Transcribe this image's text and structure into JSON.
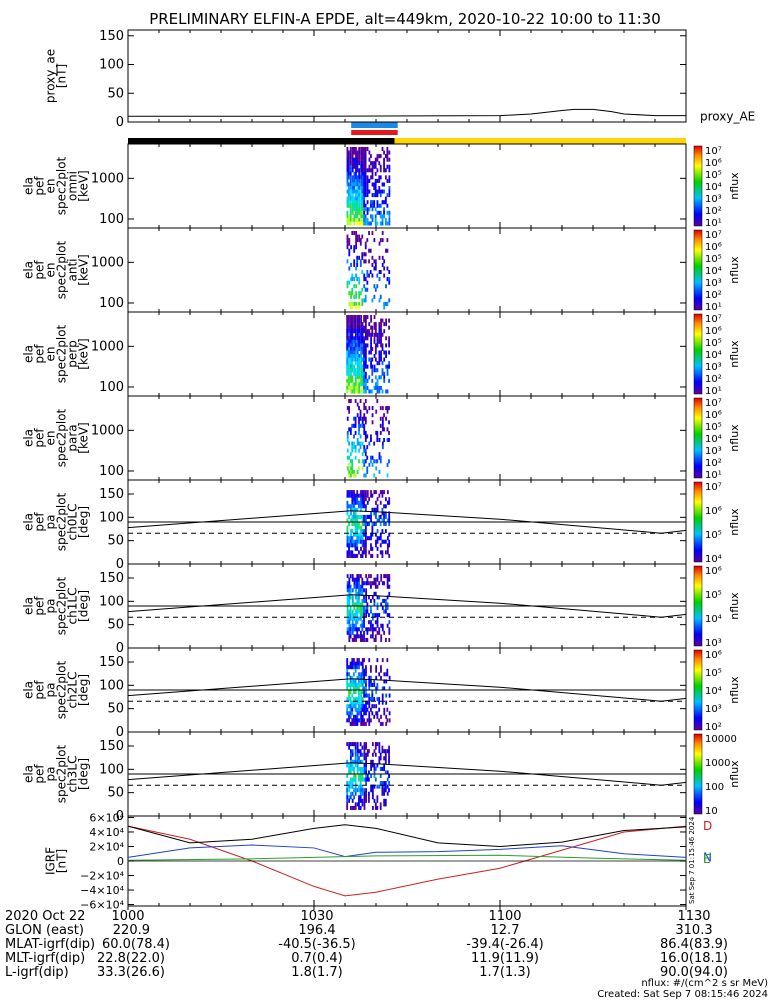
{
  "title": "PRELIMINARY ELFIN-A EPDE, alt=449km, 2020-10-22 10:00 to 11:30",
  "colors": {
    "bar_night": "#000000",
    "bar_day": "#ffd500",
    "bar_blue": "#1e88e5",
    "bar_red": "#e01b1b",
    "line_black": "#000000",
    "line_blue": "#1f3fd8",
    "line_green": "#2ca02c",
    "line_red": "#d02020"
  },
  "chart_data": [
    {
      "id": "proxy_ae",
      "type": "line",
      "ylabel": [
        "proxy_ae",
        "[nT]"
      ],
      "ylim": [
        0,
        160
      ],
      "yticks": [
        "150",
        "100",
        "50",
        "0"
      ],
      "ytick_values": [
        150,
        100,
        50,
        0
      ],
      "legend": "proxy_AE",
      "series": [
        {
          "name": "proxy_AE",
          "x": [
            0,
            30,
            60,
            65,
            70,
            72,
            75,
            78,
            80,
            85,
            90
          ],
          "y": [
            10,
            10,
            11,
            14,
            20,
            22,
            22,
            18,
            14,
            11,
            11
          ]
        }
      ]
    },
    {
      "id": "omni",
      "type": "heatmap",
      "ylabel": [
        "ela",
        "pef",
        "en",
        "spec2plot",
        "omni",
        "[keV]"
      ],
      "yticks": [
        "1000",
        "100"
      ],
      "ytick_values": [
        1000,
        100
      ],
      "yscale": "log",
      "ylim": [
        60,
        7000
      ],
      "colorbar": {
        "label": "nflux",
        "ticks": [
          "10⁷",
          "10⁶",
          "10⁵",
          "10⁴",
          "10³",
          "10²",
          "10¹"
        ]
      }
    },
    {
      "id": "anti",
      "type": "heatmap",
      "ylabel": [
        "ela",
        "pef",
        "en",
        "spec2plot",
        "anti",
        "[keV]"
      ],
      "yticks": [
        "1000",
        "100"
      ],
      "ytick_values": [
        1000,
        100
      ],
      "yscale": "log",
      "ylim": [
        60,
        7000
      ],
      "colorbar": {
        "label": "nflux",
        "ticks": [
          "10⁷",
          "10⁶",
          "10⁵",
          "10⁴",
          "10³",
          "10²",
          "10¹"
        ]
      }
    },
    {
      "id": "perp",
      "type": "heatmap",
      "ylabel": [
        "ela",
        "pef",
        "en",
        "spec2plot",
        "perp",
        "[keV]"
      ],
      "yticks": [
        "1000",
        "100"
      ],
      "ytick_values": [
        1000,
        100
      ],
      "yscale": "log",
      "ylim": [
        60,
        7000
      ],
      "colorbar": {
        "label": "nflux",
        "ticks": [
          "10⁷",
          "10⁶",
          "10⁵",
          "10⁴",
          "10³",
          "10²",
          "10¹"
        ]
      }
    },
    {
      "id": "para",
      "type": "heatmap",
      "ylabel": [
        "ela",
        "pef",
        "en",
        "spec2plot",
        "para",
        "[keV]"
      ],
      "yticks": [
        "1000",
        "100"
      ],
      "ytick_values": [
        1000,
        100
      ],
      "yscale": "log",
      "ylim": [
        60,
        7000
      ],
      "colorbar": {
        "label": "nflux",
        "ticks": [
          "10⁷",
          "10⁶",
          "10⁵",
          "10⁴",
          "10³",
          "10²",
          "10¹"
        ]
      }
    },
    {
      "id": "ch0LC",
      "type": "heatmap",
      "ylabel": [
        "ela",
        "pef",
        "pa",
        "spec2plot",
        "ch0LC",
        "[deg]"
      ],
      "yticks": [
        "150",
        "100",
        "50",
        "0"
      ],
      "ytick_values": [
        150,
        100,
        50,
        0
      ],
      "ylim": [
        0,
        180
      ],
      "colorbar": {
        "label": "nflux",
        "ticks": [
          "10⁷",
          "10⁶",
          "10⁵",
          "10⁴"
        ]
      }
    },
    {
      "id": "ch1LC",
      "type": "heatmap",
      "ylabel": [
        "ela",
        "pef",
        "pa",
        "spec2plot",
        "ch1LC",
        "[deg]"
      ],
      "yticks": [
        "150",
        "100",
        "50",
        "0"
      ],
      "ytick_values": [
        150,
        100,
        50,
        0
      ],
      "ylim": [
        0,
        180
      ],
      "colorbar": {
        "label": "nflux",
        "ticks": [
          "10⁶",
          "10⁵",
          "10⁴",
          "10³"
        ]
      }
    },
    {
      "id": "ch2LC",
      "type": "heatmap",
      "ylabel": [
        "ela",
        "pef",
        "pa",
        "spec2plot",
        "ch2LC",
        "[deg]"
      ],
      "yticks": [
        "150",
        "100",
        "50",
        "0"
      ],
      "ytick_values": [
        150,
        100,
        50,
        0
      ],
      "ylim": [
        0,
        180
      ],
      "colorbar": {
        "label": "nflux",
        "ticks": [
          "10⁶",
          "10⁵",
          "10⁴",
          "10³",
          "10²"
        ]
      }
    },
    {
      "id": "ch3LC",
      "type": "heatmap",
      "ylabel": [
        "ela",
        "pef",
        "pa",
        "spec2plot",
        "ch3LC",
        "[deg]"
      ],
      "yticks": [
        "150",
        "100",
        "50",
        "0"
      ],
      "ytick_values": [
        150,
        100,
        50,
        0
      ],
      "ylim": [
        0,
        180
      ],
      "colorbar": {
        "label": "nflux",
        "ticks": [
          "10000",
          "1000",
          "100",
          "10"
        ]
      }
    },
    {
      "id": "igrf",
      "type": "line",
      "ylabel": [
        "IGRF",
        "[nT]"
      ],
      "ylim": [
        -62000,
        62000
      ],
      "yticks": [
        "6×10⁴",
        "4×10⁴",
        "2×10⁴",
        "0",
        "−2×10⁴",
        "−4×10⁴",
        "−6×10⁴"
      ],
      "ytick_values": [
        60000,
        40000,
        20000,
        0,
        -20000,
        -40000,
        -60000
      ],
      "legend_letters": [
        "D",
        "N",
        "E"
      ],
      "side_note": "Sat Sep  7 01:15:46 2024",
      "series": [
        {
          "name": "D",
          "x": [
            0,
            10,
            20,
            30,
            35,
            40,
            50,
            60,
            70,
            80,
            90
          ],
          "y": [
            48000,
            30000,
            0,
            -35000,
            -48000,
            -43000,
            -25000,
            -10000,
            15000,
            40000,
            48000
          ]
        },
        {
          "name": "black",
          "x": [
            0,
            10,
            20,
            30,
            35,
            40,
            50,
            60,
            70,
            80,
            90
          ],
          "y": [
            48000,
            25000,
            30000,
            45000,
            50000,
            45000,
            25000,
            20000,
            26000,
            42000,
            47000
          ]
        },
        {
          "name": "N",
          "x": [
            0,
            10,
            20,
            30,
            35,
            40,
            50,
            60,
            70,
            80,
            90
          ],
          "y": [
            5000,
            18000,
            22000,
            18000,
            6000,
            12000,
            13000,
            16000,
            21000,
            10000,
            5000
          ]
        },
        {
          "name": "E",
          "x": [
            0,
            20,
            30,
            40,
            60,
            75,
            90
          ],
          "y": [
            1000,
            3000,
            5000,
            7000,
            8000,
            4000,
            1000
          ]
        }
      ]
    }
  ],
  "x_axis": {
    "tick_labels": [
      "1000",
      "1030",
      "1100",
      "1130"
    ],
    "tick_minutes": [
      0,
      30,
      60,
      90
    ]
  },
  "bars": {
    "night_end_minute": 43,
    "blue_span": [
      36,
      43.5
    ],
    "red_span": [
      36,
      43.5
    ]
  },
  "footer": {
    "rows": [
      {
        "label": "2020 Oct 22",
        "values": [
          "1000",
          "1030",
          "1100",
          "1130"
        ]
      },
      {
        "label": "GLON (east)",
        "values": [
          "220.9",
          "196.4",
          "12.7",
          "310.3"
        ]
      },
      {
        "label": "MLAT-igrf(dip)",
        "values": [
          "60.0(78.4)",
          "-40.5(-36.5)",
          "-39.4(-26.4)",
          "86.4(83.9)"
        ]
      },
      {
        "label": "MLT-igrf(dip)",
        "values": [
          "22.8(22.0)",
          "0.7(0.4)",
          "11.9(11.9)",
          "16.0(18.1)"
        ]
      },
      {
        "label": "L-igrf(dip)",
        "values": [
          "33.3(26.6)",
          "1.8(1.7)",
          "1.7(1.3)",
          "90.0(94.0)"
        ]
      }
    ],
    "units_note": "nflux: #/(cm^2 s sr MeV)",
    "created_note": "Created: Sat Sep  7 08:15:46 2024"
  }
}
